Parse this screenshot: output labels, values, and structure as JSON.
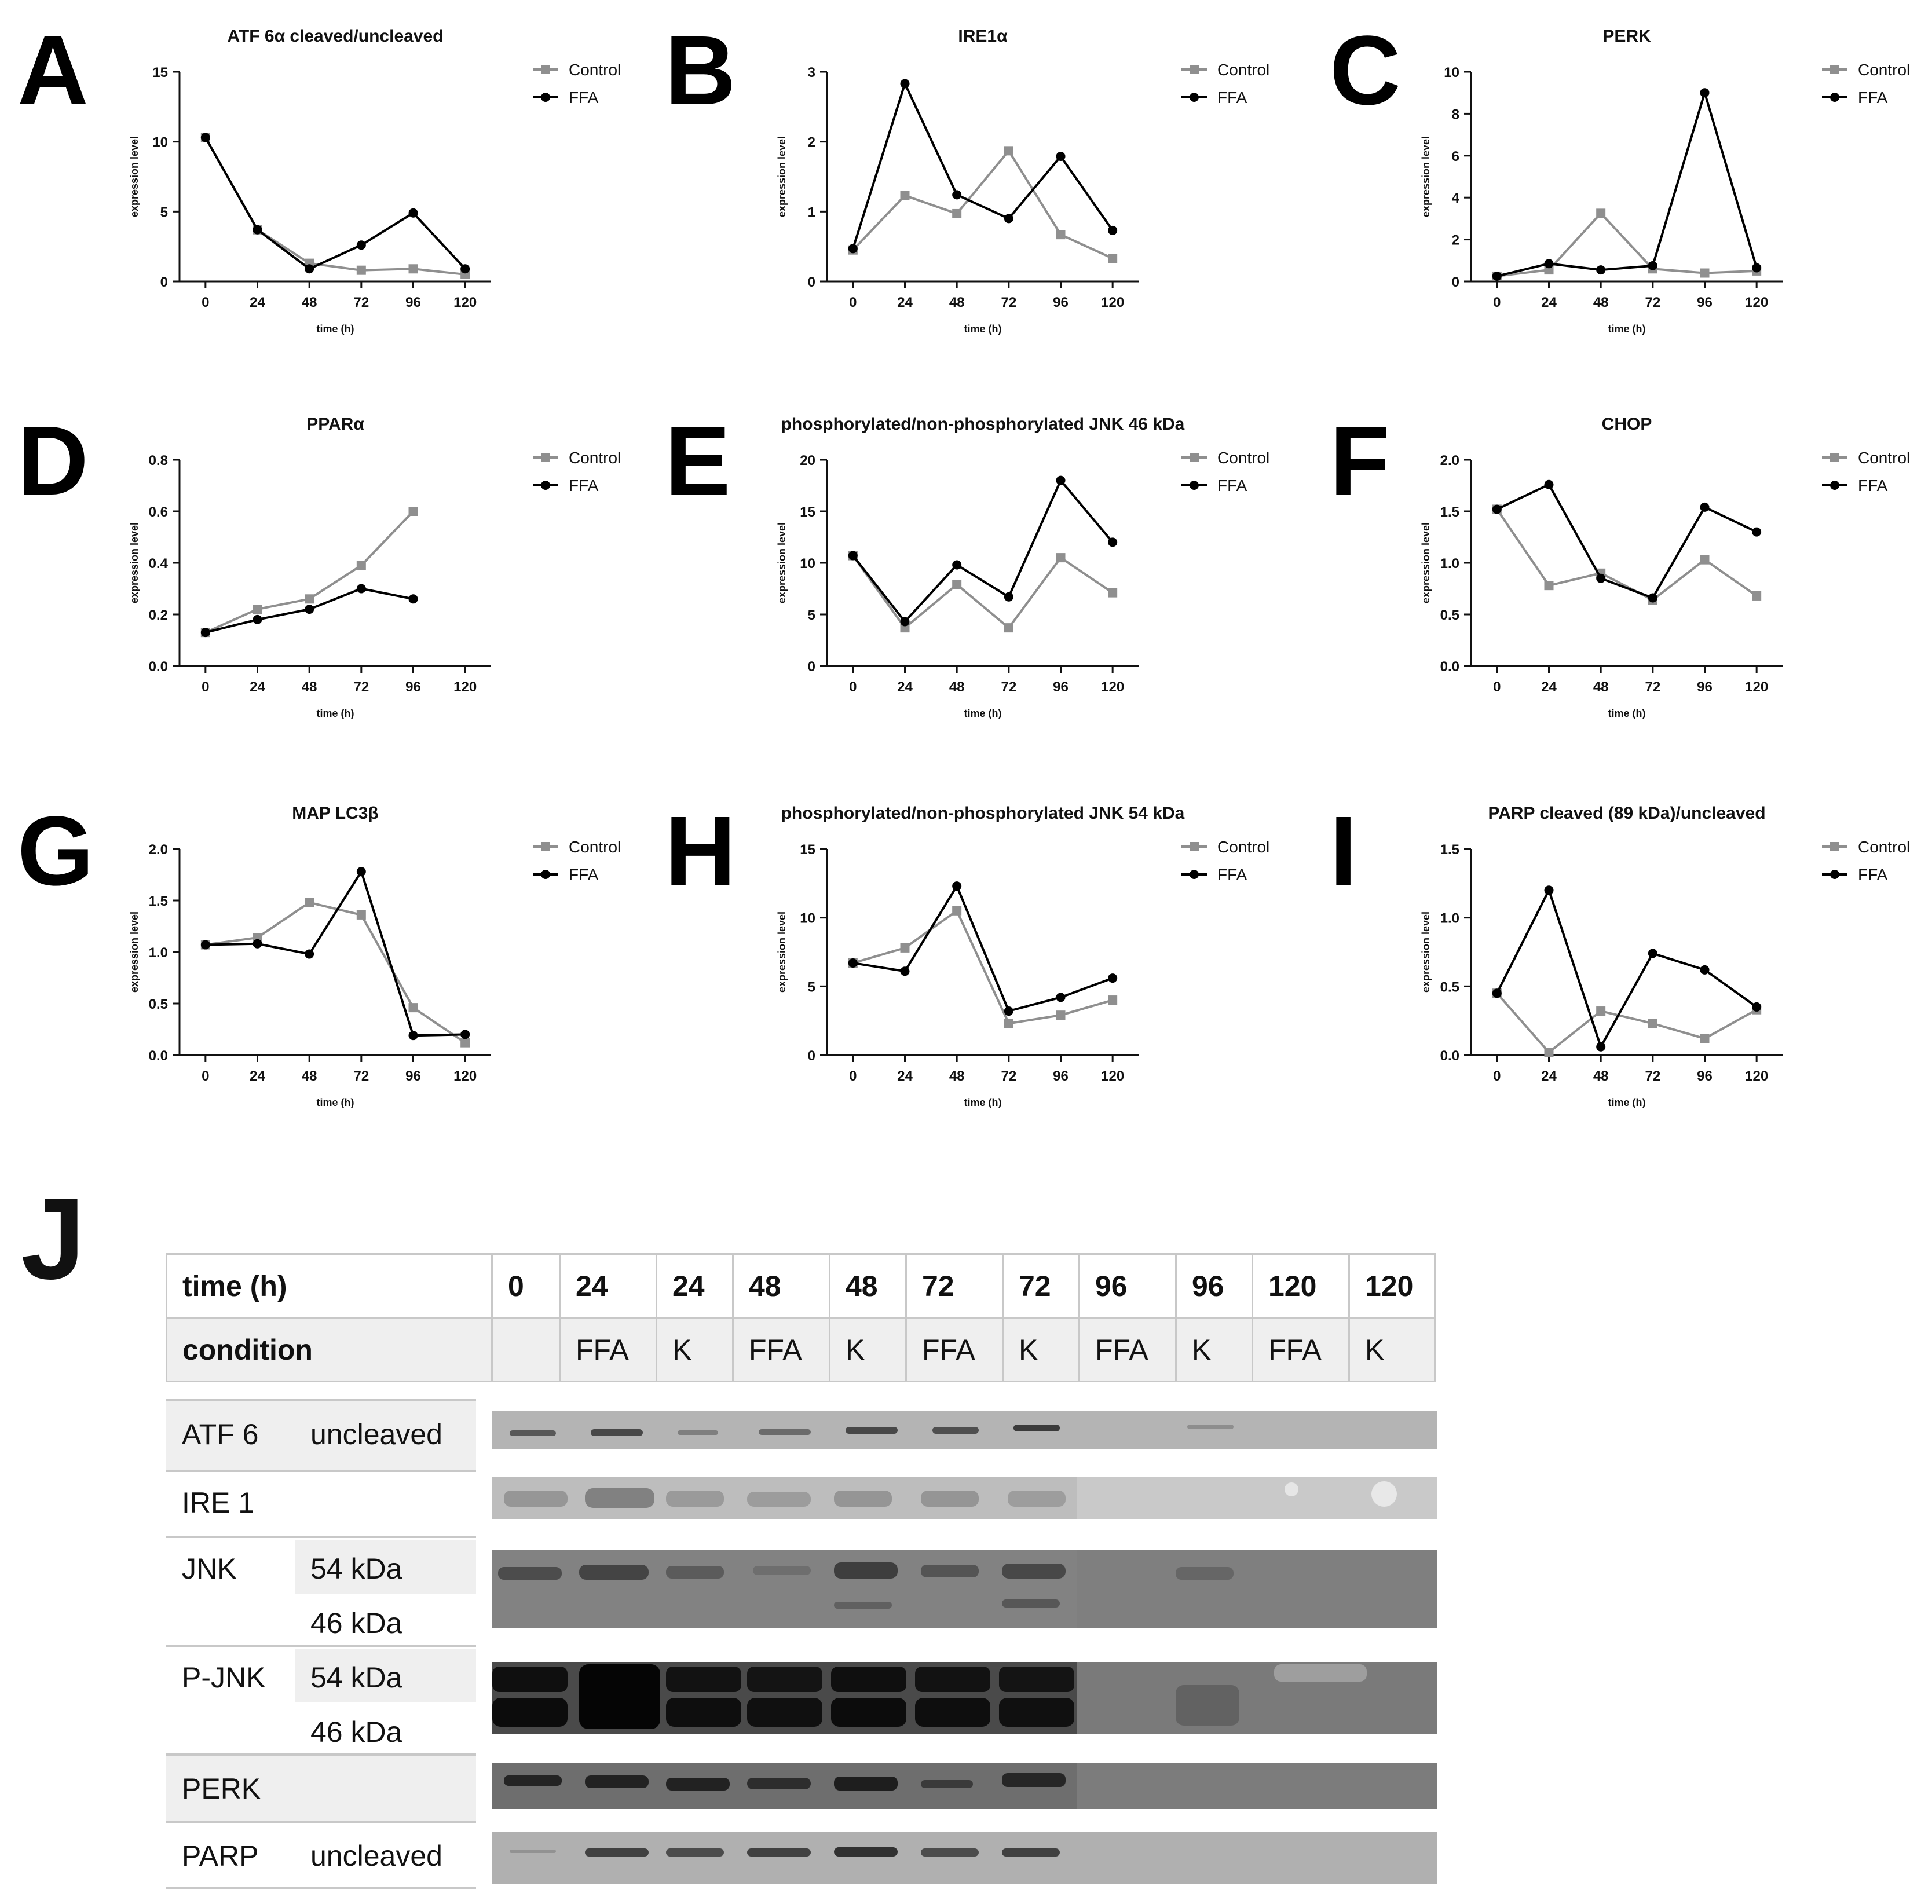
{
  "colors": {
    "control": "#8f8f8f",
    "ffa": "#000000",
    "axis": "#111111"
  },
  "chart_data": [
    {
      "panel": "A",
      "type": "line",
      "title": "ATF 6α cleaved/uncleaved",
      "xlabel": "time (h)",
      "ylabel": "expression level",
      "x": [
        0,
        24,
        48,
        72,
        96,
        120
      ],
      "xlim": [
        -12,
        132
      ],
      "ylim": [
        0,
        15
      ],
      "yticks": [
        0,
        5,
        10,
        15
      ],
      "ytick_labels": [
        "0",
        "5",
        "10",
        "15"
      ],
      "legend_position": "right",
      "series": [
        {
          "name": "Control",
          "values": [
            10.3,
            3.7,
            1.3,
            0.8,
            0.9,
            0.5
          ]
        },
        {
          "name": "FFA",
          "values": [
            10.3,
            3.7,
            0.9,
            2.6,
            4.9,
            0.9
          ]
        }
      ]
    },
    {
      "panel": "B",
      "type": "line",
      "title": "IRE1α",
      "xlabel": "time (h)",
      "ylabel": "expression level",
      "x": [
        0,
        24,
        48,
        72,
        96,
        120
      ],
      "xlim": [
        -12,
        132
      ],
      "ylim": [
        0,
        3
      ],
      "yticks": [
        0,
        1,
        2,
        3
      ],
      "ytick_labels": [
        "0",
        "1",
        "2",
        "3"
      ],
      "legend_position": "right",
      "series": [
        {
          "name": "Control",
          "values": [
            0.45,
            1.23,
            0.97,
            1.87,
            0.67,
            0.33
          ]
        },
        {
          "name": "FFA",
          "values": [
            0.47,
            2.83,
            1.24,
            0.9,
            1.79,
            0.73
          ]
        }
      ]
    },
    {
      "panel": "C",
      "type": "line",
      "title": "PERK",
      "xlabel": "time (h)",
      "ylabel": "expression level",
      "x": [
        0,
        24,
        48,
        72,
        96,
        120
      ],
      "xlim": [
        -12,
        132
      ],
      "ylim": [
        0,
        10
      ],
      "yticks": [
        0,
        2,
        4,
        6,
        8,
        10
      ],
      "ytick_labels": [
        "0",
        "2",
        "4",
        "6",
        "8",
        "10"
      ],
      "legend_position": "right",
      "series": [
        {
          "name": "Control",
          "values": [
            0.25,
            0.55,
            3.25,
            0.6,
            0.4,
            0.5
          ]
        },
        {
          "name": "FFA",
          "values": [
            0.25,
            0.85,
            0.55,
            0.75,
            9.0,
            0.65
          ]
        }
      ]
    },
    {
      "panel": "D",
      "type": "line",
      "title": "PPARα",
      "xlabel": "time (h)",
      "ylabel": "expression level",
      "x": [
        0,
        24,
        48,
        72,
        96,
        120
      ],
      "xlim": [
        -12,
        132
      ],
      "ylim": [
        0,
        0.8
      ],
      "yticks": [
        0,
        0.2,
        0.4,
        0.6,
        0.8
      ],
      "ytick_labels": [
        "0.0",
        "0.2",
        "0.4",
        "0.6",
        "0.8"
      ],
      "legend_position": "right",
      "series": [
        {
          "name": "Control",
          "values": [
            0.13,
            0.22,
            0.26,
            0.39,
            0.6,
            null
          ]
        },
        {
          "name": "FFA",
          "values": [
            0.13,
            0.18,
            0.22,
            0.3,
            0.26,
            null
          ]
        }
      ]
    },
    {
      "panel": "E",
      "type": "line",
      "title": "phosphorylated/non-phosphorylated JNK 46 kDa",
      "xlabel": "time (h)",
      "ylabel": "expression level",
      "x": [
        0,
        24,
        48,
        72,
        96,
        120
      ],
      "xlim": [
        -12,
        132
      ],
      "ylim": [
        0,
        20
      ],
      "yticks": [
        0,
        5,
        10,
        15,
        20
      ],
      "ytick_labels": [
        "0",
        "5",
        "10",
        "15",
        "20"
      ],
      "legend_position": "right",
      "series": [
        {
          "name": "Control",
          "values": [
            10.7,
            3.7,
            7.9,
            3.7,
            10.5,
            7.1
          ]
        },
        {
          "name": "FFA",
          "values": [
            10.7,
            4.3,
            9.8,
            6.7,
            18.0,
            12.0
          ]
        }
      ]
    },
    {
      "panel": "F",
      "type": "line",
      "title": "CHOP",
      "xlabel": "time (h)",
      "ylabel": "expression level",
      "x": [
        0,
        24,
        48,
        72,
        96,
        120
      ],
      "xlim": [
        -12,
        132
      ],
      "ylim": [
        0,
        2
      ],
      "yticks": [
        0,
        0.5,
        1,
        1.5,
        2
      ],
      "ytick_labels": [
        "0.0",
        "0.5",
        "1.0",
        "1.5",
        "2.0"
      ],
      "legend_position": "right",
      "series": [
        {
          "name": "Control",
          "values": [
            1.52,
            0.78,
            0.9,
            0.64,
            1.03,
            0.68
          ]
        },
        {
          "name": "FFA",
          "values": [
            1.52,
            1.76,
            0.85,
            0.66,
            1.54,
            1.3
          ]
        }
      ]
    },
    {
      "panel": "G",
      "type": "line",
      "title": "MAP LC3β",
      "xlabel": "time (h)",
      "ylabel": "expression level",
      "x": [
        0,
        24,
        48,
        72,
        96,
        120
      ],
      "xlim": [
        -12,
        132
      ],
      "ylim": [
        0,
        2
      ],
      "yticks": [
        0,
        0.5,
        1,
        1.5,
        2
      ],
      "ytick_labels": [
        "0.0",
        "0.5",
        "1.0",
        "1.5",
        "2.0"
      ],
      "legend_position": "right",
      "series": [
        {
          "name": "Control",
          "values": [
            1.07,
            1.14,
            1.48,
            1.36,
            0.46,
            0.12
          ]
        },
        {
          "name": "FFA",
          "values": [
            1.07,
            1.08,
            0.98,
            1.78,
            0.19,
            0.2
          ]
        }
      ]
    },
    {
      "panel": "H",
      "type": "line",
      "title": "phosphorylated/non-phosphorylated JNK 54 kDa",
      "xlabel": "time (h)",
      "ylabel": "expression level",
      "x": [
        0,
        24,
        48,
        72,
        96,
        120
      ],
      "xlim": [
        -12,
        132
      ],
      "ylim": [
        0,
        15
      ],
      "yticks": [
        0,
        5,
        10,
        15
      ],
      "ytick_labels": [
        "0",
        "5",
        "10",
        "15"
      ],
      "legend_position": "right",
      "series": [
        {
          "name": "Control",
          "values": [
            6.7,
            7.8,
            10.5,
            2.3,
            2.9,
            4.0
          ]
        },
        {
          "name": "FFA",
          "values": [
            6.7,
            6.1,
            12.3,
            3.2,
            4.2,
            5.6
          ]
        }
      ]
    },
    {
      "panel": "I",
      "type": "line",
      "title": "PARP cleaved (89 kDa)/uncleaved",
      "xlabel": "time (h)",
      "ylabel": "expression level",
      "x": [
        0,
        24,
        48,
        72,
        96,
        120
      ],
      "xlim": [
        -12,
        132
      ],
      "ylim": [
        0,
        1.5
      ],
      "yticks": [
        0,
        0.5,
        1,
        1.5
      ],
      "ytick_labels": [
        "0.0",
        "0.5",
        "1.0",
        "1.5"
      ],
      "legend_position": "right",
      "series": [
        {
          "name": "Control",
          "values": [
            0.45,
            0.02,
            0.32,
            0.23,
            0.12,
            0.33
          ]
        },
        {
          "name": "FFA",
          "values": [
            0.45,
            1.2,
            0.06,
            0.74,
            0.62,
            0.35
          ]
        }
      ]
    }
  ],
  "blot_panel": {
    "letter": "J",
    "time_label": "time (h)",
    "time_values": [
      "0",
      "24",
      "24",
      "48",
      "48",
      "72",
      "72",
      "96",
      "96",
      "120",
      "120"
    ],
    "condition_label": "condition",
    "condition_values": [
      "",
      "FFA",
      "K",
      "FFA",
      "K",
      "FFA",
      "K",
      "FFA",
      "K",
      "FFA",
      "K"
    ],
    "rows": [
      {
        "protein": "ATF 6",
        "sub": [
          "uncleaved"
        ]
      },
      {
        "protein": "IRE 1",
        "sub": []
      },
      {
        "protein": "JNK",
        "sub": [
          "54 kDa",
          "46 kDa"
        ]
      },
      {
        "protein": "P-JNK",
        "sub": [
          "54 kDa",
          "46 kDa"
        ]
      },
      {
        "protein": "PERK",
        "sub": []
      },
      {
        "protein": "PARP",
        "sub": [
          "uncleaved"
        ]
      }
    ]
  }
}
